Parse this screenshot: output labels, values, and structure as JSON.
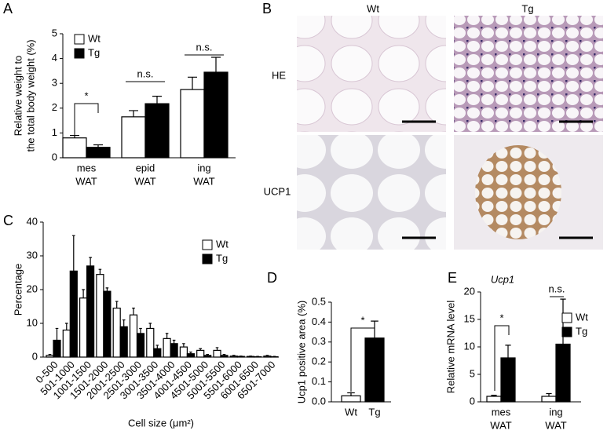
{
  "panel_labels": [
    "A",
    "B",
    "C",
    "D",
    "E"
  ],
  "histology": {
    "columns": [
      "Wt",
      "Tg"
    ],
    "rows": [
      "HE",
      "UCP1"
    ]
  },
  "chart_data": [
    {
      "type": "bar",
      "ylabel": [
        "Relative weight to",
        "the total body weight (%)"
      ],
      "categories": [
        [
          "mes",
          "WAT"
        ],
        [
          "epid",
          "WAT"
        ],
        [
          "ing",
          "WAT"
        ]
      ],
      "series": [
        {
          "name": "Wt",
          "color": "#ffffff",
          "values": [
            0.8,
            1.65,
            2.75
          ],
          "errors": [
            0.1,
            0.25,
            0.5
          ]
        },
        {
          "name": "Tg",
          "color": "#000000",
          "values": [
            0.42,
            2.18,
            3.45
          ],
          "errors": [
            0.1,
            0.3,
            0.6
          ]
        }
      ],
      "ylim": [
        0,
        5
      ],
      "yticks": [
        0,
        1,
        2,
        3,
        4,
        5
      ],
      "annotations": [
        "*",
        "n.s.",
        "n.s."
      ]
    },
    {
      "type": "bar",
      "ylabel": [
        "Percentage"
      ],
      "xlabel": "Cell size (μm²)",
      "categories": [
        "0-500",
        "501-1000",
        "1001-1500",
        "1501-2000",
        "2001-2500",
        "2501-3000",
        "3001-3500",
        "3501-4000",
        "4001-4500",
        "4501-5000",
        "5001-5500",
        "5501-6000",
        "6001-6500",
        "6501-7000"
      ],
      "series": [
        {
          "name": "Wt",
          "color": "#ffffff",
          "values": [
            0.5,
            8,
            17.5,
            24.5,
            14.5,
            12.5,
            8.5,
            5.5,
            3,
            2,
            2,
            0.3,
            0.2,
            0.3
          ],
          "errors": [
            0.3,
            2,
            2.5,
            1.5,
            2,
            2,
            1.5,
            1.5,
            1,
            0.5,
            0.8,
            0.2,
            0.1,
            0.2
          ]
        },
        {
          "name": "Tg",
          "color": "#000000",
          "values": [
            5,
            25.5,
            27,
            19.5,
            9,
            7,
            2.5,
            4,
            1,
            0.5,
            0.5,
            0.2,
            0.1,
            0.1
          ],
          "errors": [
            3.5,
            10.5,
            2.5,
            1,
            2,
            1.5,
            1,
            1,
            0.5,
            0.3,
            0.3,
            0.1,
            0.1,
            0.1
          ]
        }
      ],
      "ylim": [
        0,
        40
      ],
      "yticks": [
        0,
        10,
        20,
        30,
        40
      ]
    },
    {
      "type": "bar",
      "ylabel": [
        "Ucp1 positive area (%)"
      ],
      "categories": [
        "Wt",
        "Tg"
      ],
      "values": [
        0.03,
        0.32
      ],
      "errors": [
        0.015,
        0.085
      ],
      "colors": [
        "#ffffff",
        "#000000"
      ],
      "ylim": [
        0,
        0.5
      ],
      "yticks": [
        {
          "value": 0,
          "label": "0.0"
        },
        0.1,
        0.2,
        0.3,
        0.4,
        0.5
      ],
      "annotations": [
        "*"
      ]
    },
    {
      "type": "bar",
      "title": "Ucp1",
      "ylabel": [
        "Relative mRNA level"
      ],
      "categories": [
        [
          "mes",
          "WAT"
        ],
        [
          "ing",
          "WAT"
        ]
      ],
      "series": [
        {
          "name": "Wt",
          "color": "#ffffff",
          "values": [
            1,
            1
          ],
          "errors": [
            0.2,
            0.5
          ]
        },
        {
          "name": "Tg",
          "color": "#000000",
          "values": [
            8,
            10.5
          ],
          "errors": [
            2.3,
            8.2
          ]
        }
      ],
      "ylim": [
        0,
        20
      ],
      "yticks": [
        0,
        5,
        10,
        15,
        20
      ],
      "annotations": [
        "*",
        "n.s."
      ]
    }
  ]
}
